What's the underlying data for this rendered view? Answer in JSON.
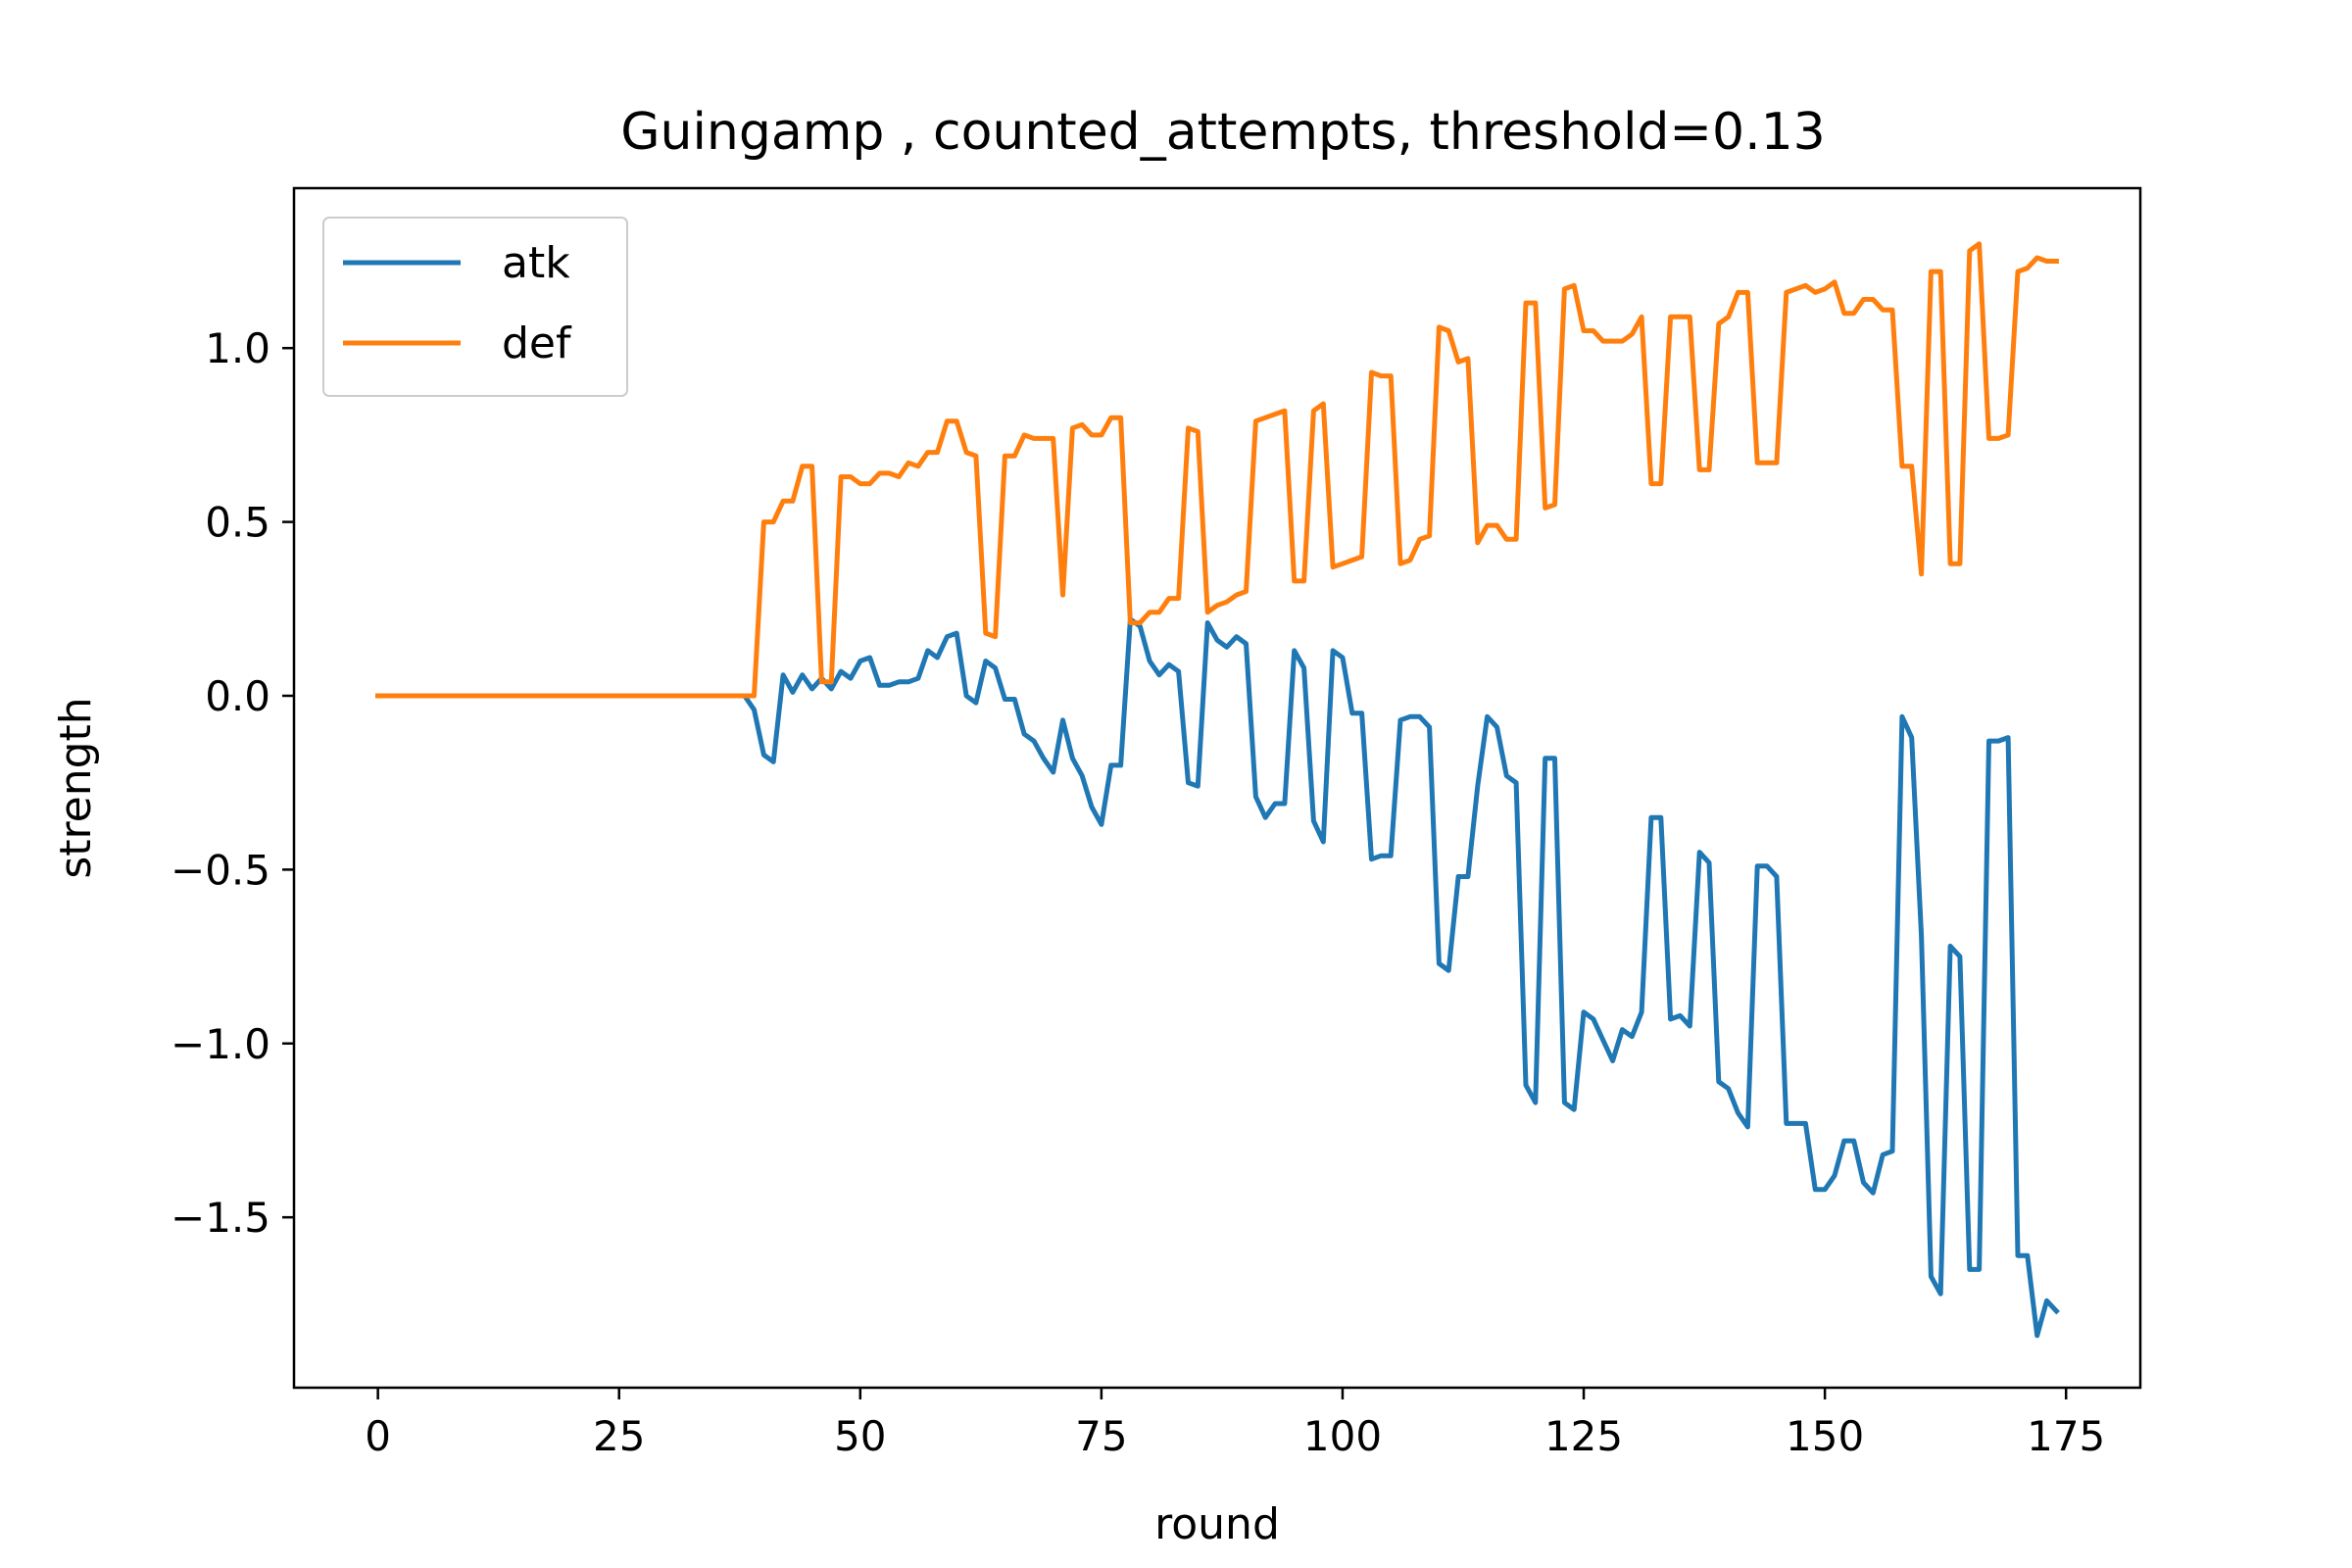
{
  "chart_data": {
    "type": "line",
    "title": "Guingamp , counted_attempts, threshold=0.13",
    "xlabel": "round",
    "ylabel": "strength",
    "xlim": [
      -8.7,
      182.7
    ],
    "ylim": [
      -1.99,
      1.46
    ],
    "xticks": [
      0,
      25,
      50,
      75,
      100,
      125,
      150,
      175
    ],
    "xtick_labels": [
      "0",
      "25",
      "50",
      "75",
      "100",
      "125",
      "150",
      "175"
    ],
    "yticks": [
      1.0,
      0.5,
      0.0,
      -0.5,
      -1.0,
      -1.5
    ],
    "ytick_labels": [
      "1.0",
      "0.5",
      "0.0",
      "−0.5",
      "−1.0",
      "−1.5"
    ],
    "grid": false,
    "legend_position": "upper-left",
    "series": [
      {
        "name": "atk",
        "color": "#1f77b4",
        "points": [
          [
            0,
            0.0
          ],
          [
            38,
            0.0
          ],
          [
            39,
            -0.04
          ],
          [
            40,
            -0.17
          ],
          [
            41,
            -0.19
          ],
          [
            42,
            0.06
          ],
          [
            43,
            0.01
          ],
          [
            44,
            0.06
          ],
          [
            45,
            0.02
          ],
          [
            46,
            0.05
          ],
          [
            47,
            0.02
          ],
          [
            48,
            0.07
          ],
          [
            49,
            0.05
          ],
          [
            50,
            0.1
          ],
          [
            51,
            0.11
          ],
          [
            52,
            0.03
          ],
          [
            53,
            0.03
          ],
          [
            54,
            0.04
          ],
          [
            55,
            0.04
          ],
          [
            56,
            0.05
          ],
          [
            57,
            0.13
          ],
          [
            58,
            0.11
          ],
          [
            59,
            0.17
          ],
          [
            60,
            0.18
          ],
          [
            61,
            0.0
          ],
          [
            62,
            -0.02
          ],
          [
            63,
            0.1
          ],
          [
            64,
            0.08
          ],
          [
            65,
            -0.01
          ],
          [
            66,
            -0.01
          ],
          [
            67,
            -0.11
          ],
          [
            68,
            -0.13
          ],
          [
            69,
            -0.18
          ],
          [
            70,
            -0.22
          ],
          [
            71,
            -0.07
          ],
          [
            72,
            -0.18
          ],
          [
            73,
            -0.23
          ],
          [
            74,
            -0.32
          ],
          [
            75,
            -0.37
          ],
          [
            76,
            -0.2
          ],
          [
            77,
            -0.2
          ],
          [
            78,
            0.22
          ],
          [
            79,
            0.2
          ],
          [
            80,
            0.1
          ],
          [
            81,
            0.06
          ],
          [
            82,
            0.09
          ],
          [
            83,
            0.07
          ],
          [
            84,
            -0.25
          ],
          [
            85,
            -0.26
          ],
          [
            86,
            0.21
          ],
          [
            87,
            0.16
          ],
          [
            88,
            0.14
          ],
          [
            89,
            0.17
          ],
          [
            90,
            0.15
          ],
          [
            91,
            -0.29
          ],
          [
            92,
            -0.35
          ],
          [
            93,
            -0.31
          ],
          [
            94,
            -0.31
          ],
          [
            95,
            0.13
          ],
          [
            96,
            0.08
          ],
          [
            97,
            -0.36
          ],
          [
            98,
            -0.42
          ],
          [
            99,
            0.13
          ],
          [
            100,
            0.11
          ],
          [
            101,
            -0.05
          ],
          [
            102,
            -0.05
          ],
          [
            103,
            -0.47
          ],
          [
            104,
            -0.46
          ],
          [
            105,
            -0.46
          ],
          [
            106,
            -0.07
          ],
          [
            107,
            -0.06
          ],
          [
            108,
            -0.06
          ],
          [
            109,
            -0.09
          ],
          [
            110,
            -0.77
          ],
          [
            111,
            -0.79
          ],
          [
            112,
            -0.52
          ],
          [
            113,
            -0.52
          ],
          [
            114,
            -0.26
          ],
          [
            115,
            -0.06
          ],
          [
            116,
            -0.09
          ],
          [
            117,
            -0.23
          ],
          [
            118,
            -0.25
          ],
          [
            119,
            -1.12
          ],
          [
            120,
            -1.17
          ],
          [
            121,
            -0.18
          ],
          [
            122,
            -0.18
          ],
          [
            123,
            -1.17
          ],
          [
            124,
            -1.19
          ],
          [
            125,
            -0.91
          ],
          [
            126,
            -0.93
          ],
          [
            127,
            -0.99
          ],
          [
            128,
            -1.05
          ],
          [
            129,
            -0.96
          ],
          [
            130,
            -0.98
          ],
          [
            131,
            -0.91
          ],
          [
            132,
            -0.35
          ],
          [
            133,
            -0.35
          ],
          [
            134,
            -0.93
          ],
          [
            135,
            -0.92
          ],
          [
            136,
            -0.95
          ],
          [
            137,
            -0.45
          ],
          [
            138,
            -0.48
          ],
          [
            139,
            -1.11
          ],
          [
            140,
            -1.13
          ],
          [
            141,
            -1.2
          ],
          [
            142,
            -1.24
          ],
          [
            143,
            -0.49
          ],
          [
            144,
            -0.49
          ],
          [
            145,
            -0.52
          ],
          [
            146,
            -1.23
          ],
          [
            147,
            -1.23
          ],
          [
            148,
            -1.23
          ],
          [
            149,
            -1.42
          ],
          [
            150,
            -1.42
          ],
          [
            151,
            -1.38
          ],
          [
            152,
            -1.28
          ],
          [
            153,
            -1.28
          ],
          [
            154,
            -1.4
          ],
          [
            155,
            -1.43
          ],
          [
            156,
            -1.32
          ],
          [
            157,
            -1.31
          ],
          [
            158,
            -0.06
          ],
          [
            159,
            -0.12
          ],
          [
            160,
            -0.69
          ],
          [
            161,
            -1.67
          ],
          [
            162,
            -1.72
          ],
          [
            163,
            -0.72
          ],
          [
            164,
            -0.75
          ],
          [
            165,
            -1.65
          ],
          [
            166,
            -1.65
          ],
          [
            167,
            -0.13
          ],
          [
            168,
            -0.13
          ],
          [
            169,
            -0.12
          ],
          [
            170,
            -1.61
          ],
          [
            171,
            -1.61
          ],
          [
            172,
            -1.84
          ],
          [
            173,
            -1.74
          ],
          [
            174,
            -1.77
          ]
        ]
      },
      {
        "name": "def",
        "color": "#ff7f0e",
        "points": [
          [
            0,
            0.0
          ],
          [
            39,
            0.0
          ],
          [
            40,
            0.5
          ],
          [
            41,
            0.5
          ],
          [
            42,
            0.56
          ],
          [
            43,
            0.56
          ],
          [
            44,
            0.66
          ],
          [
            45,
            0.66
          ],
          [
            46,
            0.04
          ],
          [
            47,
            0.04
          ],
          [
            48,
            0.63
          ],
          [
            49,
            0.63
          ],
          [
            50,
            0.61
          ],
          [
            51,
            0.61
          ],
          [
            52,
            0.64
          ],
          [
            53,
            0.64
          ],
          [
            54,
            0.63
          ],
          [
            55,
            0.67
          ],
          [
            56,
            0.66
          ],
          [
            57,
            0.7
          ],
          [
            58,
            0.7
          ],
          [
            59,
            0.79
          ],
          [
            60,
            0.79
          ],
          [
            61,
            0.7
          ],
          [
            62,
            0.69
          ],
          [
            63,
            0.18
          ],
          [
            64,
            0.17
          ],
          [
            65,
            0.69
          ],
          [
            66,
            0.69
          ],
          [
            67,
            0.75
          ],
          [
            68,
            0.74
          ],
          [
            69,
            0.74
          ],
          [
            70,
            0.74
          ],
          [
            71,
            0.29
          ],
          [
            72,
            0.77
          ],
          [
            73,
            0.78
          ],
          [
            74,
            0.75
          ],
          [
            75,
            0.75
          ],
          [
            76,
            0.8
          ],
          [
            77,
            0.8
          ],
          [
            78,
            0.21
          ],
          [
            79,
            0.21
          ],
          [
            80,
            0.24
          ],
          [
            81,
            0.24
          ],
          [
            82,
            0.28
          ],
          [
            83,
            0.28
          ],
          [
            84,
            0.77
          ],
          [
            85,
            0.76
          ],
          [
            86,
            0.24
          ],
          [
            87,
            0.26
          ],
          [
            88,
            0.27
          ],
          [
            89,
            0.29
          ],
          [
            90,
            0.3
          ],
          [
            91,
            0.79
          ],
          [
            92,
            0.8
          ],
          [
            93,
            0.81
          ],
          [
            94,
            0.82
          ],
          [
            95,
            0.33
          ],
          [
            96,
            0.33
          ],
          [
            97,
            0.82
          ],
          [
            98,
            0.84
          ],
          [
            99,
            0.37
          ],
          [
            100,
            0.38
          ],
          [
            101,
            0.39
          ],
          [
            102,
            0.4
          ],
          [
            103,
            0.93
          ],
          [
            104,
            0.92
          ],
          [
            105,
            0.92
          ],
          [
            106,
            0.38
          ],
          [
            107,
            0.39
          ],
          [
            108,
            0.45
          ],
          [
            109,
            0.46
          ],
          [
            110,
            1.06
          ],
          [
            111,
            1.05
          ],
          [
            112,
            0.96
          ],
          [
            113,
            0.97
          ],
          [
            114,
            0.44
          ],
          [
            115,
            0.49
          ],
          [
            116,
            0.49
          ],
          [
            117,
            0.45
          ],
          [
            118,
            0.45
          ],
          [
            119,
            1.13
          ],
          [
            120,
            1.13
          ],
          [
            121,
            0.54
          ],
          [
            122,
            0.55
          ],
          [
            123,
            1.17
          ],
          [
            124,
            1.18
          ],
          [
            125,
            1.05
          ],
          [
            126,
            1.05
          ],
          [
            127,
            1.02
          ],
          [
            128,
            1.02
          ],
          [
            129,
            1.02
          ],
          [
            130,
            1.04
          ],
          [
            131,
            1.09
          ],
          [
            132,
            0.61
          ],
          [
            133,
            0.61
          ],
          [
            134,
            1.09
          ],
          [
            135,
            1.09
          ],
          [
            136,
            1.09
          ],
          [
            137,
            0.65
          ],
          [
            138,
            0.65
          ],
          [
            139,
            1.07
          ],
          [
            140,
            1.09
          ],
          [
            141,
            1.16
          ],
          [
            142,
            1.16
          ],
          [
            143,
            0.67
          ],
          [
            144,
            0.67
          ],
          [
            145,
            0.67
          ],
          [
            146,
            1.16
          ],
          [
            147,
            1.17
          ],
          [
            148,
            1.18
          ],
          [
            149,
            1.16
          ],
          [
            150,
            1.17
          ],
          [
            151,
            1.19
          ],
          [
            152,
            1.1
          ],
          [
            153,
            1.1
          ],
          [
            154,
            1.14
          ],
          [
            155,
            1.14
          ],
          [
            156,
            1.11
          ],
          [
            157,
            1.11
          ],
          [
            158,
            0.66
          ],
          [
            159,
            0.66
          ],
          [
            160,
            0.35
          ],
          [
            161,
            1.22
          ],
          [
            162,
            1.22
          ],
          [
            163,
            0.38
          ],
          [
            164,
            0.38
          ],
          [
            165,
            1.28
          ],
          [
            166,
            1.3
          ],
          [
            167,
            0.74
          ],
          [
            168,
            0.74
          ],
          [
            169,
            0.75
          ],
          [
            170,
            1.22
          ],
          [
            171,
            1.23
          ],
          [
            172,
            1.26
          ],
          [
            173,
            1.25
          ],
          [
            174,
            1.25
          ]
        ]
      }
    ]
  }
}
